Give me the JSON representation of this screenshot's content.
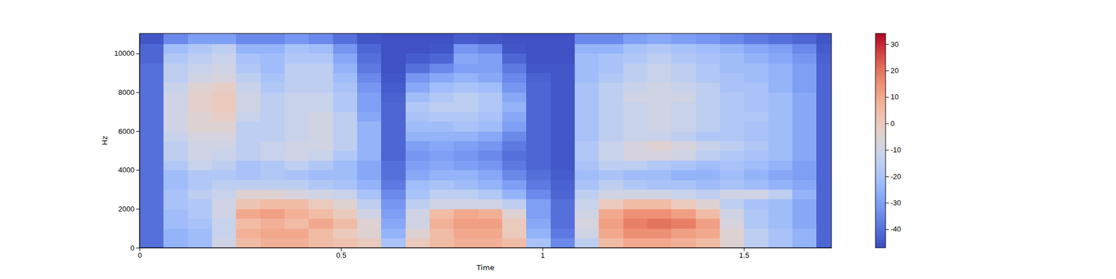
{
  "chart_data": {
    "type": "heatmap",
    "x_label": "Time",
    "y_label": "Hz",
    "x_edges": [
      0,
      0.06,
      0.12,
      0.18,
      0.24,
      0.3,
      0.36,
      0.42,
      0.48,
      0.54,
      0.6,
      0.66,
      0.72,
      0.78,
      0.84,
      0.9,
      0.96,
      1.02,
      1.08,
      1.14,
      1.2,
      1.26,
      1.32,
      1.38,
      1.44,
      1.5,
      1.56,
      1.62,
      1.68,
      1.717
    ],
    "y_edges": [
      0,
      500,
      1000,
      1500,
      2000,
      2500,
      3000,
      3500,
      4000,
      4500,
      5000,
      5500,
      6000,
      6500,
      7000,
      7500,
      8000,
      8500,
      9000,
      9500,
      10000,
      10500,
      11025
    ],
    "z": [
      [
        -40,
        -25,
        -22,
        -10,
        5,
        8,
        8,
        5,
        3,
        0,
        -20,
        0,
        5,
        8,
        8,
        5,
        -20,
        -35,
        -15,
        5,
        10,
        10,
        8,
        5,
        -5,
        -15,
        -20,
        -25,
        -42
      ],
      [
        -40,
        -25,
        -22,
        -12,
        8,
        10,
        10,
        5,
        0,
        -5,
        -25,
        -5,
        5,
        10,
        10,
        0,
        -25,
        -38,
        -10,
        10,
        15,
        15,
        12,
        10,
        -5,
        -15,
        -20,
        -25,
        -42
      ],
      [
        -40,
        -22,
        -20,
        -12,
        5,
        8,
        5,
        10,
        5,
        -5,
        -28,
        -10,
        8,
        12,
        12,
        0,
        -28,
        -40,
        -8,
        12,
        18,
        20,
        18,
        12,
        -8,
        -18,
        -22,
        -28,
        -42
      ],
      [
        -40,
        -22,
        -18,
        -10,
        10,
        12,
        8,
        5,
        0,
        -10,
        -30,
        -10,
        5,
        10,
        8,
        -5,
        -30,
        -40,
        -10,
        10,
        15,
        15,
        12,
        5,
        -10,
        -18,
        -22,
        -28,
        -42
      ],
      [
        -40,
        -20,
        -18,
        -10,
        2,
        5,
        5,
        0,
        -5,
        -15,
        -32,
        -15,
        -10,
        -10,
        -10,
        -15,
        -30,
        -40,
        -12,
        0,
        5,
        5,
        0,
        -5,
        -15,
        -20,
        -22,
        -28,
        -42
      ],
      [
        -40,
        -20,
        -15,
        -12,
        -5,
        -5,
        -8,
        -10,
        -12,
        -20,
        -35,
        -20,
        -15,
        -15,
        -18,
        -25,
        -35,
        -42,
        -15,
        -10,
        -10,
        -10,
        -12,
        -15,
        -10,
        -10,
        -15,
        -25,
        -42
      ],
      [
        -40,
        -22,
        -18,
        -15,
        -15,
        -15,
        -15,
        -18,
        -20,
        -25,
        -38,
        -22,
        -20,
        -22,
        -25,
        -30,
        -38,
        -43,
        -20,
        -15,
        -18,
        -20,
        -20,
        -22,
        -20,
        -22,
        -25,
        -28,
        -42
      ],
      [
        -40,
        -22,
        -18,
        -18,
        -20,
        -18,
        -20,
        -22,
        -22,
        -28,
        -40,
        -28,
        -25,
        -25,
        -28,
        -35,
        -40,
        -44,
        -22,
        -20,
        -22,
        -22,
        -25,
        -25,
        -22,
        -25,
        -28,
        -30,
        -42
      ],
      [
        -40,
        -18,
        -12,
        -15,
        -20,
        -18,
        -15,
        -18,
        -22,
        -28,
        -40,
        -30,
        -28,
        -30,
        -32,
        -38,
        -42,
        -45,
        -20,
        -15,
        -15,
        -18,
        -20,
        -22,
        -20,
        -22,
        -25,
        -30,
        -42
      ],
      [
        -40,
        -15,
        -10,
        -12,
        -15,
        -12,
        -10,
        -12,
        -18,
        -25,
        -42,
        -32,
        -30,
        -32,
        -35,
        -40,
        -42,
        -45,
        -18,
        -12,
        -8,
        -8,
        -10,
        -15,
        -18,
        -20,
        -22,
        -28,
        -42
      ],
      [
        -40,
        -15,
        -10,
        -10,
        -15,
        -12,
        -10,
        -10,
        -15,
        -25,
        -42,
        -30,
        -28,
        -30,
        -32,
        -38,
        -42,
        -45,
        -18,
        -12,
        -8,
        -5,
        -8,
        -12,
        -15,
        -18,
        -22,
        -28,
        -42
      ],
      [
        -40,
        -12,
        -8,
        -8,
        -15,
        -15,
        -12,
        -10,
        -15,
        -25,
        -42,
        -25,
        -25,
        -25,
        -28,
        -35,
        -42,
        -45,
        -20,
        -15,
        -12,
        -12,
        -15,
        -18,
        -18,
        -20,
        -22,
        -28,
        -42
      ],
      [
        -40,
        -10,
        -5,
        -5,
        -15,
        -15,
        -12,
        -10,
        -15,
        -25,
        -42,
        -22,
        -22,
        -20,
        -22,
        -30,
        -42,
        -45,
        -20,
        -15,
        -12,
        -10,
        -12,
        -15,
        -18,
        -20,
        -22,
        -28,
        -42
      ],
      [
        -40,
        -10,
        -5,
        -2,
        -12,
        -15,
        -12,
        -10,
        -15,
        -28,
        -42,
        -20,
        -18,
        -18,
        -20,
        -28,
        -42,
        -45,
        -20,
        -15,
        -12,
        -10,
        -12,
        -15,
        -18,
        -18,
        -22,
        -28,
        -42
      ],
      [
        -40,
        -10,
        -3,
        0,
        -10,
        -15,
        -12,
        -12,
        -18,
        -30,
        -42,
        -18,
        -15,
        -15,
        -18,
        -25,
        -42,
        -45,
        -20,
        -15,
        -12,
        -10,
        -12,
        -15,
        -18,
        -20,
        -22,
        -28,
        -42
      ],
      [
        -40,
        -10,
        -3,
        0,
        -10,
        -15,
        -12,
        -12,
        -18,
        -30,
        -43,
        -22,
        -18,
        -15,
        -18,
        -28,
        -42,
        -45,
        -20,
        -15,
        -10,
        -10,
        -10,
        -15,
        -18,
        -20,
        -22,
        -28,
        -42
      ],
      [
        -40,
        -12,
        -5,
        -2,
        -12,
        -18,
        -15,
        -15,
        -20,
        -32,
        -44,
        -28,
        -22,
        -20,
        -22,
        -32,
        -42,
        -45,
        -20,
        -15,
        -12,
        -10,
        -12,
        -15,
        -20,
        -20,
        -25,
        -30,
        -42
      ],
      [
        -40,
        -15,
        -10,
        -8,
        -15,
        -20,
        -15,
        -15,
        -22,
        -35,
        -45,
        -32,
        -28,
        -25,
        -28,
        -35,
        -43,
        -45,
        -22,
        -18,
        -15,
        -12,
        -15,
        -18,
        -20,
        -22,
        -25,
        -30,
        -42
      ],
      [
        -40,
        -15,
        -12,
        -10,
        -18,
        -22,
        -15,
        -15,
        -25,
        -38,
        -46,
        -40,
        -35,
        -30,
        -30,
        -38,
        -45,
        -45,
        -22,
        -20,
        -15,
        -12,
        -15,
        -18,
        -22,
        -22,
        -25,
        -30,
        -42
      ],
      [
        -42,
        -18,
        -15,
        -12,
        -20,
        -22,
        -18,
        -18,
        -28,
        -40,
        -46,
        -44,
        -42,
        -28,
        -30,
        -42,
        -46,
        -46,
        -22,
        -20,
        -18,
        -15,
        -18,
        -20,
        -22,
        -25,
        -28,
        -32,
        -43
      ],
      [
        -42,
        -22,
        -18,
        -15,
        -25,
        -25,
        -20,
        -22,
        -32,
        -42,
        -46,
        -46,
        -45,
        -32,
        -35,
        -45,
        -46,
        -46,
        -25,
        -25,
        -20,
        -18,
        -20,
        -22,
        -25,
        -28,
        -30,
        -35,
        -44
      ],
      [
        -45,
        -35,
        -30,
        -30,
        -35,
        -35,
        -32,
        -35,
        -40,
        -45,
        -46,
        -46,
        -46,
        -44,
        -45,
        -46,
        -46,
        -46,
        -35,
        -35,
        -30,
        -28,
        -30,
        -32,
        -35,
        -38,
        -40,
        -42,
        -45
      ]
    ],
    "xlim": [
      0,
      1.717
    ],
    "ylim": [
      0,
      11025
    ],
    "xticks": [
      0,
      0.5,
      1,
      1.5
    ],
    "yticks": [
      0,
      2000,
      4000,
      6000,
      8000,
      10000
    ],
    "colorbar": {
      "range": [
        -47,
        34
      ],
      "ticks": [
        -40,
        -30,
        -20,
        -10,
        0,
        10,
        20,
        30
      ]
    }
  }
}
